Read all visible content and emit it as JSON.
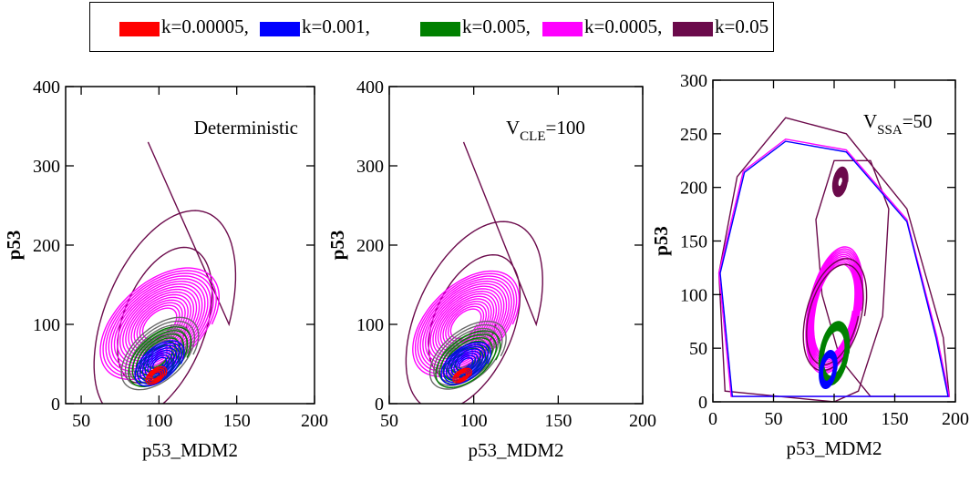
{
  "legend": {
    "items": [
      {
        "label": "k=0.00005,",
        "color": "#ff0000"
      },
      {
        "label": "k=0.001,",
        "color": "#0000ff"
      },
      {
        "label": "k=0.005,",
        "color": "#008000"
      },
      {
        "label": "k=0.0005,",
        "color": "#ff00ff"
      },
      {
        "label": "k=0.05",
        "color": "#6b0a4b"
      }
    ]
  },
  "chart_data": [
    {
      "type": "line",
      "annotation": "Deterministic",
      "xlabel": "p53_MDM2",
      "ylabel": "p53",
      "xlim": [
        40,
        200
      ],
      "ylim": [
        0,
        400
      ],
      "xticks": [
        50,
        100,
        150,
        200
      ],
      "yticks": [
        0,
        100,
        200,
        300,
        400
      ],
      "trajectories": [
        {
          "color": "#6b0a4b",
          "center": [
            100,
            100
          ],
          "start": [
            93,
            330
          ],
          "r": [
            45,
            155
          ],
          "tilt": 0.5,
          "turns": 2,
          "decay": 0.6
        },
        {
          "color": "#ff00ff",
          "center": [
            100,
            100
          ],
          "r": [
            34,
            72
          ],
          "tilt": 0.55,
          "turns": 16,
          "decay": 0.75
        },
        {
          "color": "#6a6a6a",
          "center": [
            100,
            62
          ],
          "r": [
            22,
            48
          ],
          "tilt": 0.6,
          "turns": 7,
          "decay": 0.7
        },
        {
          "color": "#008000",
          "center": [
            100,
            58
          ],
          "r": [
            18,
            40
          ],
          "tilt": 0.6,
          "turns": 6,
          "decay": 0.7
        },
        {
          "color": "#0000ff",
          "center": [
            100,
            50
          ],
          "r": [
            14,
            30
          ],
          "tilt": 0.6,
          "turns": 8,
          "decay": 0.8
        },
        {
          "color": "#ff0000",
          "center": [
            98,
            35
          ],
          "r": [
            6,
            12
          ],
          "tilt": 0.6,
          "turns": 4,
          "decay": 0.7
        }
      ]
    },
    {
      "type": "line",
      "annotation": {
        "main": "V",
        "sub": "CLE",
        "rest": "=100"
      },
      "xlabel": "p53_MDM2",
      "ylabel": "p53",
      "xlim": [
        50,
        200
      ],
      "ylim": [
        0,
        400
      ],
      "xticks": [
        50,
        100,
        150,
        200
      ],
      "yticks": [
        0,
        100,
        200,
        300,
        400
      ],
      "trajectories": [
        {
          "color": "#6b0a4b",
          "center": [
            97,
            100
          ],
          "start": [
            94,
            330
          ],
          "r": [
            40,
            140
          ],
          "tilt": 0.5,
          "turns": 2,
          "decay": 0.6
        },
        {
          "color": "#ff00ff",
          "center": [
            95,
            100
          ],
          "r": [
            28,
            68
          ],
          "tilt": 0.55,
          "turns": 16,
          "decay": 0.75
        },
        {
          "color": "#6a6a6a",
          "center": [
            96,
            60
          ],
          "r": [
            20,
            45
          ],
          "tilt": 0.6,
          "turns": 7,
          "decay": 0.7
        },
        {
          "color": "#008000",
          "center": [
            96,
            55
          ],
          "r": [
            17,
            38
          ],
          "tilt": 0.6,
          "turns": 6,
          "decay": 0.7
        },
        {
          "color": "#0000ff",
          "center": [
            95,
            50
          ],
          "r": [
            13,
            28
          ],
          "tilt": 0.6,
          "turns": 8,
          "decay": 0.8
        },
        {
          "color": "#ff0000",
          "center": [
            93,
            35
          ],
          "r": [
            5,
            10
          ],
          "tilt": 0.6,
          "turns": 4,
          "decay": 0.7
        }
      ]
    },
    {
      "type": "line",
      "annotation": {
        "main": "V",
        "sub": "SSA",
        "rest": "=50"
      },
      "xlabel": "p53_MDM2",
      "ylabel": "p53",
      "xlim": [
        0,
        200
      ],
      "ylim": [
        0,
        300
      ],
      "xticks": [
        0,
        50,
        100,
        150,
        200
      ],
      "yticks": [
        0,
        50,
        100,
        150,
        200,
        250,
        300
      ],
      "trajectories": [
        {
          "color": "#6b0a4b",
          "loop": [
            [
              100,
              0
            ],
            [
              10,
              10
            ],
            [
              5,
              120
            ],
            [
              20,
              210
            ],
            [
              60,
              265
            ],
            [
              110,
              250
            ],
            [
              160,
              180
            ],
            [
              190,
              60
            ],
            [
              195,
              5
            ],
            [
              130,
              5
            ],
            [
              105,
              40
            ],
            [
              90,
              100
            ],
            [
              85,
              170
            ],
            [
              100,
              225
            ],
            [
              130,
              225
            ],
            [
              145,
              180
            ],
            [
              140,
              80
            ],
            [
              120,
              10
            ],
            [
              100,
              0
            ]
          ]
        },
        {
          "color": "#ff00ff",
          "loop": [
            [
              100,
              5
            ],
            [
              15,
              5
            ],
            [
              5,
              120
            ],
            [
              25,
              215
            ],
            [
              60,
              245
            ],
            [
              110,
              235
            ],
            [
              160,
              170
            ],
            [
              185,
              60
            ],
            [
              195,
              5
            ],
            [
              100,
              5
            ]
          ]
        },
        {
          "color": "#0000ff",
          "loop": [
            [
              100,
              5
            ],
            [
              16,
              5
            ],
            [
              6,
              120
            ],
            [
              26,
              214
            ],
            [
              60,
              243
            ],
            [
              110,
              233
            ],
            [
              160,
              168
            ],
            [
              184,
              60
            ],
            [
              194,
              5
            ],
            [
              100,
              5
            ]
          ]
        },
        {
          "color": "#ff00ff",
          "center": [
            100,
            85
          ],
          "r": [
            22,
            60
          ],
          "tilt": 0.4,
          "turns": 10,
          "decay": 0.3
        },
        {
          "color": "#6b0a4b",
          "center": [
            100,
            80
          ],
          "r": [
            25,
            55
          ],
          "tilt": 0.4,
          "turns": 2,
          "decay": 0.2
        },
        {
          "color": "#008000",
          "center": [
            100,
            45
          ],
          "r": [
            12,
            30
          ],
          "tilt": 0.3,
          "turns": 12,
          "decay": 0.3
        },
        {
          "color": "#0000ff",
          "center": [
            95,
            30
          ],
          "r": [
            7,
            18
          ],
          "tilt": 0.3,
          "turns": 12,
          "decay": 0.4
        },
        {
          "color": "#6b0a4b",
          "center": [
            105,
            205
          ],
          "r": [
            6,
            14
          ],
          "tilt": 0.3,
          "turns": 14,
          "decay": 0.7
        }
      ]
    }
  ]
}
